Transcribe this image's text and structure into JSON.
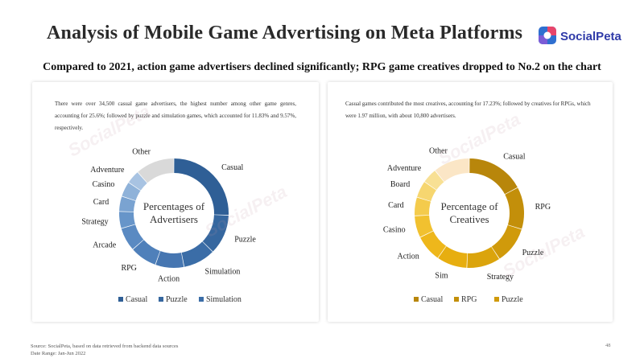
{
  "header": {
    "title": "Analysis of Mobile Game Advertising on Meta Platforms",
    "logo_text": "SocialPeta",
    "subtitle": "Compared to 2021, action game advertisers declined significantly; RPG game creatives dropped to No.2 on the chart"
  },
  "left_panel": {
    "description": "There were over 34,500 casual game advertisers, the highest number among other game genres, accounting for 25.6%; followed by puzzle and simulation games, which accounted for 11.83% and 9.57%, respectively."
  },
  "right_panel": {
    "description": "Casual games contributed the most creatives, accounting for 17.23%; followed by creatives for RPGs, which were 1.97 million, with about 10,800 advertisers."
  },
  "chart_data": [
    {
      "type": "pie",
      "style": "donut",
      "center_label": [
        "Percentages of",
        "Advertisers"
      ],
      "categories": [
        "Casual",
        "Puzzle",
        "Simulation",
        "Action",
        "RPG",
        "Arcade",
        "Strategy",
        "Card",
        "Casino",
        "Adventure",
        "Other"
      ],
      "values": [
        25.6,
        11.83,
        9.57,
        8.5,
        8.0,
        7.0,
        5.0,
        4.5,
        4.5,
        4.0,
        11.5
      ],
      "colors": [
        "#2f5f96",
        "#36679f",
        "#3b6da7",
        "#4676b1",
        "#4f80ba",
        "#5a8ac2",
        "#6795c9",
        "#7aa3d1",
        "#8fb2d9",
        "#a8c3e2",
        "#d9d9d9"
      ],
      "legend": [
        "Casual",
        "Puzzle",
        "Simulation"
      ],
      "legend_position": "bottom"
    },
    {
      "type": "pie",
      "style": "donut",
      "center_label": [
        "Percentage of",
        "Creatives"
      ],
      "categories": [
        "Casual",
        "RPG",
        "Puzzle",
        "Strategy",
        "Simulation",
        "Action",
        "Casino",
        "Card",
        "Board",
        "Adventure",
        "Other"
      ],
      "values": [
        17.23,
        12.5,
        11.0,
        10.0,
        9.0,
        8.0,
        6.5,
        5.5,
        5.0,
        4.5,
        10.77
      ],
      "colors": [
        "#b8860b",
        "#c38f0a",
        "#d09a0b",
        "#dba40c",
        "#e7ae10",
        "#eeb71b",
        "#f1c12f",
        "#f4cb4c",
        "#f6d670",
        "#f8e094",
        "#fbe6c6"
      ],
      "legend": [
        "Casual",
        "RPG",
        "Puzzle"
      ],
      "legend_position": "bottom"
    }
  ],
  "left_chart_labels": {
    "Casual": "Casual",
    "Puzzle": "Puzzle",
    "Simulation": "Simulation",
    "Action": "Action",
    "RPG": "RPG",
    "Arcade": "Arcade",
    "Strategy": "Strategy",
    "Card": "Card",
    "Casino": "Casino",
    "Adventure": "Adventure",
    "Other": "Other"
  },
  "right_chart_labels": {
    "Casual": "Casual",
    "RPG": "RPG",
    "Puzzle": "Puzzle",
    "Strategy": "Strategy",
    "Simulation": "Sim",
    "Action": "Action",
    "Casino": "Casino",
    "Card": "Card",
    "Board": "Board",
    "Adventure": "Adventure",
    "Other": "Other"
  },
  "footer": {
    "source": "Source: SocialPeta, based on data retrieved from backend data sources",
    "date_range": "Date Range: Jan-Jun 2022",
    "page_number": "48"
  },
  "watermark_text": "SocialPeta"
}
